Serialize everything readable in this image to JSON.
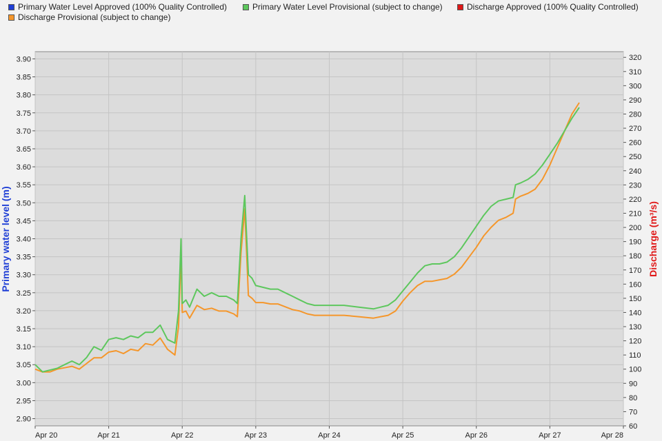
{
  "legend": {
    "items": [
      {
        "label": "Primary Water Level Approved (100% Quality Controlled)",
        "color": "#1f3fd6"
      },
      {
        "label": "Primary Water Level Provisional (subject to change)",
        "color": "#5dc75d"
      },
      {
        "label": "Discharge Approved (100% Quality Controlled)",
        "color": "#e01818"
      },
      {
        "label": "Discharge Provisional (subject to change)",
        "color": "#f5962a"
      }
    ]
  },
  "chart_data": {
    "type": "line",
    "x_ticks": [
      "Apr 20",
      "Apr 21",
      "Apr 22",
      "Apr 23",
      "Apr 24",
      "Apr 25",
      "Apr 26",
      "Apr 27",
      "Apr 28"
    ],
    "y_left": {
      "label": "Primary water level (m)",
      "color": "#1f3fd6",
      "range": [
        2.88,
        3.92
      ],
      "ticks": [
        "2.90",
        "2.95",
        "3.00",
        "3.05",
        "3.10",
        "3.15",
        "3.20",
        "3.25",
        "3.30",
        "3.35",
        "3.40",
        "3.45",
        "3.50",
        "3.55",
        "3.60",
        "3.65",
        "3.70",
        "3.75",
        "3.80",
        "3.85",
        "3.90"
      ]
    },
    "y_right": {
      "label": "Discharge (m³/s)",
      "color": "#e01818",
      "range": [
        60,
        324
      ],
      "ticks": [
        "60",
        "70",
        "80",
        "90",
        "100",
        "110",
        "120",
        "130",
        "140",
        "150",
        "160",
        "170",
        "180",
        "190",
        "200",
        "210",
        "220",
        "230",
        "240",
        "250",
        "260",
        "270",
        "280",
        "290",
        "300",
        "310",
        "320"
      ]
    },
    "x_range": [
      "Apr 20",
      "Apr 28"
    ],
    "grid": true,
    "series": [
      {
        "name": "Primary Water Level Provisional (subject to change)",
        "axis": "left",
        "color": "#5dc75d",
        "x": [
          "Apr 20 00:00",
          "Apr 20 02:24",
          "Apr 20 04:48",
          "Apr 20 07:12",
          "Apr 20 09:36",
          "Apr 20 12:00",
          "Apr 20 14:24",
          "Apr 20 16:48",
          "Apr 20 19:12",
          "Apr 20 21:36",
          "Apr 21 00:00",
          "Apr 21 02:24",
          "Apr 21 04:48",
          "Apr 21 07:12",
          "Apr 21 09:36",
          "Apr 21 12:00",
          "Apr 21 14:24",
          "Apr 21 16:48",
          "Apr 21 19:12",
          "Apr 21 21:36",
          "Apr 21 22:48",
          "Apr 21 23:36",
          "Apr 22 00:00",
          "Apr 22 01:12",
          "Apr 22 02:24",
          "Apr 22 04:48",
          "Apr 22 07:12",
          "Apr 22 09:36",
          "Apr 22 12:00",
          "Apr 22 14:24",
          "Apr 22 16:48",
          "Apr 22 18:00",
          "Apr 22 19:12",
          "Apr 22 20:24",
          "Apr 22 21:36",
          "Apr 22 22:48",
          "Apr 23 00:00",
          "Apr 23 02:24",
          "Apr 23 04:48",
          "Apr 23 07:12",
          "Apr 23 09:36",
          "Apr 23 12:00",
          "Apr 23 14:24",
          "Apr 23 16:48",
          "Apr 23 19:12",
          "Apr 24 00:00",
          "Apr 24 04:48",
          "Apr 24 09:36",
          "Apr 24 14:24",
          "Apr 24 16:48",
          "Apr 24 19:12",
          "Apr 24 21:36",
          "Apr 25 00:00",
          "Apr 25 02:24",
          "Apr 25 04:48",
          "Apr 25 07:12",
          "Apr 25 09:36",
          "Apr 25 12:00",
          "Apr 25 14:24",
          "Apr 25 16:48",
          "Apr 25 19:12",
          "Apr 25 21:36",
          "Apr 26 00:00",
          "Apr 26 02:24",
          "Apr 26 04:48",
          "Apr 26 07:12",
          "Apr 26 09:36",
          "Apr 26 12:00",
          "Apr 26 12:48",
          "Apr 26 14:24",
          "Apr 26 16:48",
          "Apr 26 19:12",
          "Apr 26 21:36",
          "Apr 27 00:00",
          "Apr 27 02:24",
          "Apr 27 04:48",
          "Apr 27 07:12",
          "Apr 27 09:36"
        ],
        "values": [
          3.05,
          3.03,
          3.035,
          3.04,
          3.05,
          3.06,
          3.05,
          3.07,
          3.1,
          3.09,
          3.12,
          3.125,
          3.12,
          3.13,
          3.125,
          3.14,
          3.14,
          3.16,
          3.12,
          3.11,
          3.2,
          3.4,
          3.22,
          3.23,
          3.21,
          3.26,
          3.24,
          3.25,
          3.24,
          3.24,
          3.23,
          3.22,
          3.4,
          3.52,
          3.3,
          3.29,
          3.27,
          3.265,
          3.26,
          3.26,
          3.25,
          3.24,
          3.23,
          3.22,
          3.215,
          3.215,
          3.215,
          3.21,
          3.205,
          3.21,
          3.215,
          3.23,
          3.255,
          3.28,
          3.305,
          3.325,
          3.33,
          3.33,
          3.335,
          3.35,
          3.375,
          3.405,
          3.435,
          3.465,
          3.49,
          3.505,
          3.51,
          3.515,
          3.55,
          3.555,
          3.565,
          3.58,
          3.605,
          3.635,
          3.665,
          3.7,
          3.735,
          3.765
        ]
      },
      {
        "name": "Discharge Provisional (subject to change)",
        "axis": "right",
        "color": "#f5962a",
        "x": [
          "Apr 20 00:00",
          "Apr 20 02:24",
          "Apr 20 04:48",
          "Apr 20 07:12",
          "Apr 20 09:36",
          "Apr 20 12:00",
          "Apr 20 14:24",
          "Apr 20 16:48",
          "Apr 20 19:12",
          "Apr 20 21:36",
          "Apr 21 00:00",
          "Apr 21 02:24",
          "Apr 21 04:48",
          "Apr 21 07:12",
          "Apr 21 09:36",
          "Apr 21 12:00",
          "Apr 21 14:24",
          "Apr 21 16:48",
          "Apr 21 19:12",
          "Apr 21 21:36",
          "Apr 21 22:48",
          "Apr 21 23:36",
          "Apr 22 00:00",
          "Apr 22 01:12",
          "Apr 22 02:24",
          "Apr 22 04:48",
          "Apr 22 07:12",
          "Apr 22 09:36",
          "Apr 22 12:00",
          "Apr 22 14:24",
          "Apr 22 16:48",
          "Apr 22 18:00",
          "Apr 22 19:12",
          "Apr 22 20:24",
          "Apr 22 21:36",
          "Apr 22 22:48",
          "Apr 23 00:00",
          "Apr 23 02:24",
          "Apr 23 04:48",
          "Apr 23 07:12",
          "Apr 23 09:36",
          "Apr 23 12:00",
          "Apr 23 14:24",
          "Apr 23 16:48",
          "Apr 23 19:12",
          "Apr 24 00:00",
          "Apr 24 04:48",
          "Apr 24 09:36",
          "Apr 24 14:24",
          "Apr 24 16:48",
          "Apr 24 19:12",
          "Apr 24 21:36",
          "Apr 25 00:00",
          "Apr 25 02:24",
          "Apr 25 04:48",
          "Apr 25 07:12",
          "Apr 25 09:36",
          "Apr 25 12:00",
          "Apr 25 14:24",
          "Apr 25 16:48",
          "Apr 25 19:12",
          "Apr 25 21:36",
          "Apr 26 00:00",
          "Apr 26 02:24",
          "Apr 26 04:48",
          "Apr 26 07:12",
          "Apr 26 09:36",
          "Apr 26 12:00",
          "Apr 26 12:48",
          "Apr 26 14:24",
          "Apr 26 16:48",
          "Apr 26 19:12",
          "Apr 26 21:36",
          "Apr 27 00:00",
          "Apr 27 02:24",
          "Apr 27 04:48",
          "Apr 27 07:12",
          "Apr 27 09:36"
        ],
        "values": [
          100,
          98,
          98,
          100,
          101,
          102,
          100,
          104,
          108,
          108,
          112,
          113,
          111,
          114,
          113,
          118,
          117,
          122,
          114,
          110,
          130,
          182,
          140,
          141,
          136,
          145,
          142,
          143,
          141,
          141,
          139,
          137,
          182,
          213,
          152,
          150,
          147,
          147,
          146,
          146,
          144,
          142,
          141,
          139,
          138,
          138,
          138,
          137,
          136,
          137,
          138,
          141,
          148,
          154,
          159,
          162,
          162,
          163,
          164,
          167,
          172,
          179,
          186,
          194,
          200,
          205,
          207,
          210,
          220,
          222,
          224,
          227,
          234,
          244,
          256,
          268,
          280,
          288
        ]
      }
    ]
  }
}
